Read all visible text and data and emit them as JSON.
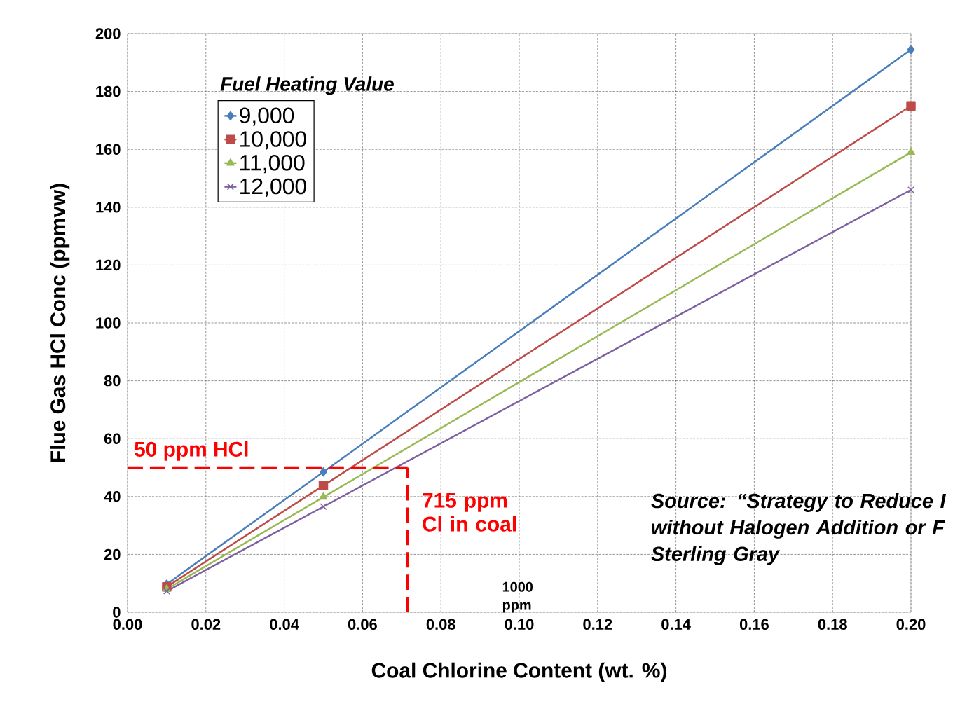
{
  "chart_data": {
    "type": "line",
    "xlabel": "Coal Chlorine Content (wt. %)",
    "ylabel": "Flue Gas HCl Conc (ppmvw)",
    "legend_title": "Fuel Heating Value",
    "legend": "top left",
    "grid": true,
    "x": [
      0.01,
      0.05,
      0.2
    ],
    "series": [
      {
        "name": "9,000",
        "color": "#4a7ebb",
        "marker": "diamond",
        "values": [
          9.7,
          48.5,
          194.5
        ]
      },
      {
        "name": "10,000",
        "color": "#be4b48",
        "marker": "square",
        "values": [
          8.8,
          43.8,
          175
        ]
      },
      {
        "name": "11,000",
        "color": "#98b954",
        "marker": "triangle",
        "values": [
          8,
          39.8,
          159
        ]
      },
      {
        "name": "12,000",
        "color": "#7d60a0",
        "marker": "cross",
        "values": [
          7.3,
          36.5,
          146
        ]
      }
    ],
    "xlim": [
      0,
      0.2
    ],
    "ylim": [
      0,
      200
    ],
    "xticks": [
      {
        "value": 0,
        "label": "0.00"
      },
      {
        "value": 0.02,
        "label": "0.02"
      },
      {
        "value": 0.04,
        "label": "0.04"
      },
      {
        "value": 0.06,
        "label": "0.06"
      },
      {
        "value": 0.08,
        "label": "0.08"
      },
      {
        "value": 0.1,
        "label": "0.10"
      },
      {
        "value": 0.12,
        "label": "0.12"
      },
      {
        "value": 0.14,
        "label": "0.14"
      },
      {
        "value": 0.16,
        "label": "0.16"
      },
      {
        "value": 0.18,
        "label": "0.18"
      },
      {
        "value": 0.2,
        "label": "0.20"
      }
    ],
    "yticks": [
      0,
      20,
      40,
      60,
      80,
      100,
      120,
      140,
      160,
      180,
      200
    ],
    "ref_lines": [
      {
        "axis": "y",
        "value": 50,
        "label": "50 ppm HCl",
        "color": "#ff0000",
        "line_style": "dashed"
      },
      {
        "axis": "x",
        "value": 0.0715,
        "label": "715 ppm Cl in coal",
        "color": "#ff0000",
        "line_style": "dashed"
      }
    ],
    "annotations": [
      "1000 ppm",
      "Source: “Strategy to Reduce I without Halogen Addition or F Sterling Gray"
    ]
  }
}
